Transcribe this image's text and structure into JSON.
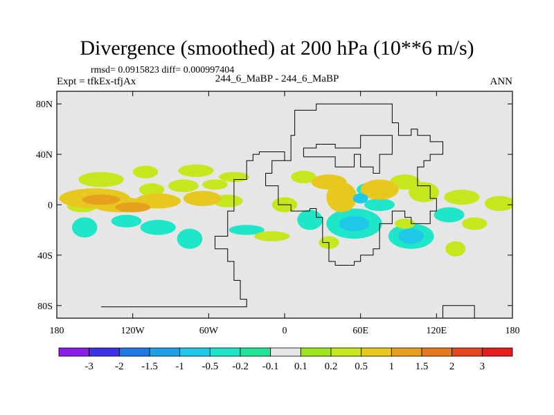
{
  "chart_data": {
    "type": "heatmap",
    "title": "Divergence (smoothed) at 200 hPa (10**6 m/s)",
    "stats": "rmsd= 0.0915823 diff= 0.000997404",
    "experiment": "Expt = tfkEx-tfjAx",
    "cases": "244_6_MaBP - 244_6_MaBP",
    "season": "ANN",
    "xaxis": {
      "range": [
        -180,
        180
      ],
      "ticks": [
        {
          "v": -180,
          "label": "180"
        },
        {
          "v": -120,
          "label": "120W"
        },
        {
          "v": -60,
          "label": "60W"
        },
        {
          "v": 0,
          "label": "0"
        },
        {
          "v": 60,
          "label": "60E"
        },
        {
          "v": 120,
          "label": "120E"
        },
        {
          "v": 180,
          "label": "180"
        }
      ]
    },
    "yaxis": {
      "range": [
        -90,
        90
      ],
      "ticks": [
        {
          "v": 80,
          "label": "80N"
        },
        {
          "v": 40,
          "label": "40N"
        },
        {
          "v": 0,
          "label": "0"
        },
        {
          "v": -40,
          "label": "40S"
        },
        {
          "v": -80,
          "label": "80S"
        }
      ]
    },
    "background_color": "#e6e6e6",
    "colorbar": {
      "colors": [
        "#8a1ee8",
        "#3c32e6",
        "#1e78e6",
        "#1ea0e6",
        "#1ec8e6",
        "#1ee6c8",
        "#1ee696",
        "#e6e6e6",
        "#a0e61e",
        "#c8e61e",
        "#e6c81e",
        "#e6a01e",
        "#e6781e",
        "#e6461e",
        "#e61e1e"
      ],
      "labels": [
        "-3",
        "-2",
        "-1.5",
        "-1",
        "-0.5",
        "-0.2",
        "-0.1",
        "0.1",
        "0.2",
        "0.5",
        "1",
        "1.5",
        "2",
        "3"
      ]
    },
    "fields": [
      {
        "lon": -150,
        "lat": 5,
        "rlon": 28,
        "rlat": 8,
        "level": 0.5
      },
      {
        "lon": -130,
        "lat": 0,
        "rlon": 22,
        "rlat": 6,
        "level": 0.5
      },
      {
        "lon": -145,
        "lat": 4,
        "rlon": 15,
        "rlat": 4,
        "level": 1
      },
      {
        "lon": -120,
        "lat": -2,
        "rlon": 14,
        "rlat": 4,
        "level": 1
      },
      {
        "lon": -160,
        "lat": -1,
        "rlon": 12,
        "rlat": 5,
        "level": 0.2
      },
      {
        "lon": -100,
        "lat": 3,
        "rlon": 18,
        "rlat": 6,
        "level": 0.5
      },
      {
        "lon": -65,
        "lat": 5,
        "rlon": 15,
        "rlat": 6,
        "level": 0.5
      },
      {
        "lon": -45,
        "lat": 3,
        "rlon": 12,
        "rlat": 5,
        "level": 0.2
      },
      {
        "lon": -105,
        "lat": 12,
        "rlon": 10,
        "rlat": 5,
        "level": 0.2
      },
      {
        "lon": -80,
        "lat": 15,
        "rlon": 12,
        "rlat": 5,
        "level": 0.2
      },
      {
        "lon": -55,
        "lat": 16,
        "rlon": 10,
        "rlat": 4,
        "level": 0.2
      },
      {
        "lon": -145,
        "lat": 20,
        "rlon": 18,
        "rlat": 6,
        "level": 0.2
      },
      {
        "lon": -110,
        "lat": 26,
        "rlon": 10,
        "rlat": 5,
        "level": 0.2
      },
      {
        "lon": -70,
        "lat": 27,
        "rlon": 14,
        "rlat": 5,
        "level": 0.2
      },
      {
        "lon": -40,
        "lat": 22,
        "rlon": 12,
        "rlat": 4,
        "level": 0.2
      },
      {
        "lon": -158,
        "lat": -18,
        "rlon": 10,
        "rlat": 8,
        "level": -0.2
      },
      {
        "lon": -125,
        "lat": -13,
        "rlon": 12,
        "rlat": 5,
        "level": -0.2
      },
      {
        "lon": -100,
        "lat": -18,
        "rlon": 14,
        "rlat": 6,
        "level": -0.2
      },
      {
        "lon": -75,
        "lat": -27,
        "rlon": 10,
        "rlat": 8,
        "level": -0.2
      },
      {
        "lon": -30,
        "lat": -20,
        "rlon": 14,
        "rlat": 4,
        "level": -0.2
      },
      {
        "lon": 45,
        "lat": 6,
        "rlon": 12,
        "rlat": 12,
        "level": 0.5
      },
      {
        "lon": 35,
        "lat": 18,
        "rlon": 14,
        "rlat": 6,
        "level": 0.5
      },
      {
        "lon": 75,
        "lat": 12,
        "rlon": 15,
        "rlat": 8,
        "level": 0.5
      },
      {
        "lon": 95,
        "lat": 18,
        "rlon": 12,
        "rlat": 6,
        "level": 0.2
      },
      {
        "lon": 110,
        "lat": 10,
        "rlon": 12,
        "rlat": 8,
        "level": 0.2
      },
      {
        "lon": 15,
        "lat": 22,
        "rlon": 10,
        "rlat": 5,
        "level": 0.2
      },
      {
        "lon": 140,
        "lat": 6,
        "rlon": 14,
        "rlat": 6,
        "level": 0.2
      },
      {
        "lon": 170,
        "lat": 1,
        "rlon": 12,
        "rlat": 6,
        "level": 0.2
      },
      {
        "lon": 0,
        "lat": 0,
        "rlon": 10,
        "rlat": 6,
        "level": 0.2
      },
      {
        "lon": 55,
        "lat": -15,
        "rlon": 22,
        "rlat": 12,
        "level": -0.2
      },
      {
        "lon": 100,
        "lat": -25,
        "rlon": 18,
        "rlat": 10,
        "level": -0.2
      },
      {
        "lon": 130,
        "lat": -8,
        "rlon": 12,
        "rlat": 6,
        "level": -0.2
      },
      {
        "lon": 20,
        "lat": -12,
        "rlon": 10,
        "rlat": 8,
        "level": -0.2
      },
      {
        "lon": 75,
        "lat": 0,
        "rlon": 12,
        "rlat": 5,
        "level": -0.2
      },
      {
        "lon": 65,
        "lat": 12,
        "rlon": 8,
        "rlat": 5,
        "level": -0.2
      },
      {
        "lon": 55,
        "lat": -15,
        "rlon": 12,
        "rlat": 6,
        "level": -0.5
      },
      {
        "lon": 100,
        "lat": -25,
        "rlon": 10,
        "rlat": 6,
        "level": -0.5
      },
      {
        "lon": 60,
        "lat": 5,
        "rlon": 6,
        "rlat": 4,
        "level": -0.5
      },
      {
        "lon": 95,
        "lat": -15,
        "rlon": 8,
        "rlat": 4,
        "level": 0.2
      },
      {
        "lon": 135,
        "lat": -35,
        "rlon": 8,
        "rlat": 6,
        "level": 0.2
      },
      {
        "lon": -10,
        "lat": -25,
        "rlon": 14,
        "rlat": 4,
        "level": 0.2
      },
      {
        "lon": 35,
        "lat": -30,
        "rlon": 8,
        "rlat": 5,
        "level": 0.2
      },
      {
        "lon": 150,
        "lat": -15,
        "rlon": 10,
        "rlat": 5,
        "level": 0.2
      }
    ],
    "continents": [
      [
        [
          -145,
          -81
        ],
        [
          -30,
          -81
        ],
        [
          -30,
          -75
        ],
        [
          -35,
          -75
        ],
        [
          -35,
          -60
        ],
        [
          -40,
          -60
        ],
        [
          -40,
          -45
        ],
        [
          -45,
          -45
        ],
        [
          -45,
          -35
        ],
        [
          -55,
          -35
        ],
        [
          -55,
          -25
        ],
        [
          -45,
          -25
        ],
        [
          -45,
          -5
        ],
        [
          -40,
          -5
        ],
        [
          -40,
          20
        ],
        [
          -30,
          20
        ],
        [
          -30,
          35
        ],
        [
          -25,
          35
        ],
        [
          -25,
          40
        ],
        [
          -20,
          40
        ],
        [
          -20,
          42
        ],
        [
          0,
          42
        ],
        [
          0,
          35
        ],
        [
          5,
          35
        ],
        [
          5,
          55
        ],
        [
          8,
          55
        ],
        [
          8,
          75
        ],
        [
          25,
          75
        ],
        [
          25,
          80
        ],
        [
          85,
          80
        ],
        [
          85,
          65
        ],
        [
          90,
          65
        ],
        [
          90,
          55
        ],
        [
          100,
          55
        ],
        [
          100,
          60
        ],
        [
          105,
          60
        ],
        [
          105,
          55
        ],
        [
          115,
          55
        ],
        [
          115,
          50
        ],
        [
          125,
          50
        ],
        [
          125,
          40
        ],
        [
          115,
          40
        ],
        [
          115,
          35
        ],
        [
          110,
          35
        ],
        [
          110,
          30
        ],
        [
          105,
          30
        ],
        [
          105,
          15
        ],
        [
          115,
          15
        ],
        [
          115,
          5
        ],
        [
          120,
          5
        ],
        [
          120,
          -5
        ],
        [
          115,
          -5
        ],
        [
          115,
          -15
        ],
        [
          100,
          -15
        ],
        [
          100,
          -10
        ],
        [
          95,
          -10
        ],
        [
          95,
          -5
        ],
        [
          85,
          -5
        ],
        [
          85,
          -15
        ],
        [
          75,
          -15
        ],
        [
          75,
          -35
        ],
        [
          70,
          -35
        ],
        [
          70,
          -40
        ],
        [
          60,
          -40
        ],
        [
          60,
          -45
        ],
        [
          55,
          -45
        ],
        [
          55,
          -48
        ],
        [
          40,
          -48
        ],
        [
          40,
          -45
        ],
        [
          35,
          -45
        ],
        [
          35,
          -30
        ],
        [
          30,
          -30
        ],
        [
          30,
          -10
        ],
        [
          25,
          -10
        ],
        [
          25,
          -3
        ],
        [
          20,
          -3
        ],
        [
          20,
          -5
        ],
        [
          5,
          -5
        ],
        [
          5,
          0
        ],
        [
          -5,
          0
        ],
        [
          -5,
          15
        ],
        [
          -15,
          15
        ],
        [
          -15,
          25
        ],
        [
          -10,
          25
        ],
        [
          -10,
          35
        ],
        [
          0,
          35
        ]
      ],
      [
        [
          15,
          38
        ],
        [
          40,
          38
        ],
        [
          40,
          30
        ],
        [
          55,
          30
        ],
        [
          55,
          40
        ],
        [
          60,
          40
        ],
        [
          60,
          30
        ],
        [
          70,
          30
        ],
        [
          70,
          25
        ],
        [
          75,
          25
        ],
        [
          75,
          40
        ],
        [
          85,
          40
        ],
        [
          85,
          55
        ],
        [
          60,
          55
        ],
        [
          60,
          45
        ],
        [
          40,
          45
        ],
        [
          40,
          48
        ],
        [
          25,
          48
        ],
        [
          25,
          45
        ],
        [
          15,
          45
        ],
        [
          15,
          38
        ]
      ],
      [
        [
          125,
          -90
        ],
        [
          125,
          -80
        ],
        [
          150,
          -80
        ],
        [
          150,
          -90
        ]
      ]
    ]
  }
}
